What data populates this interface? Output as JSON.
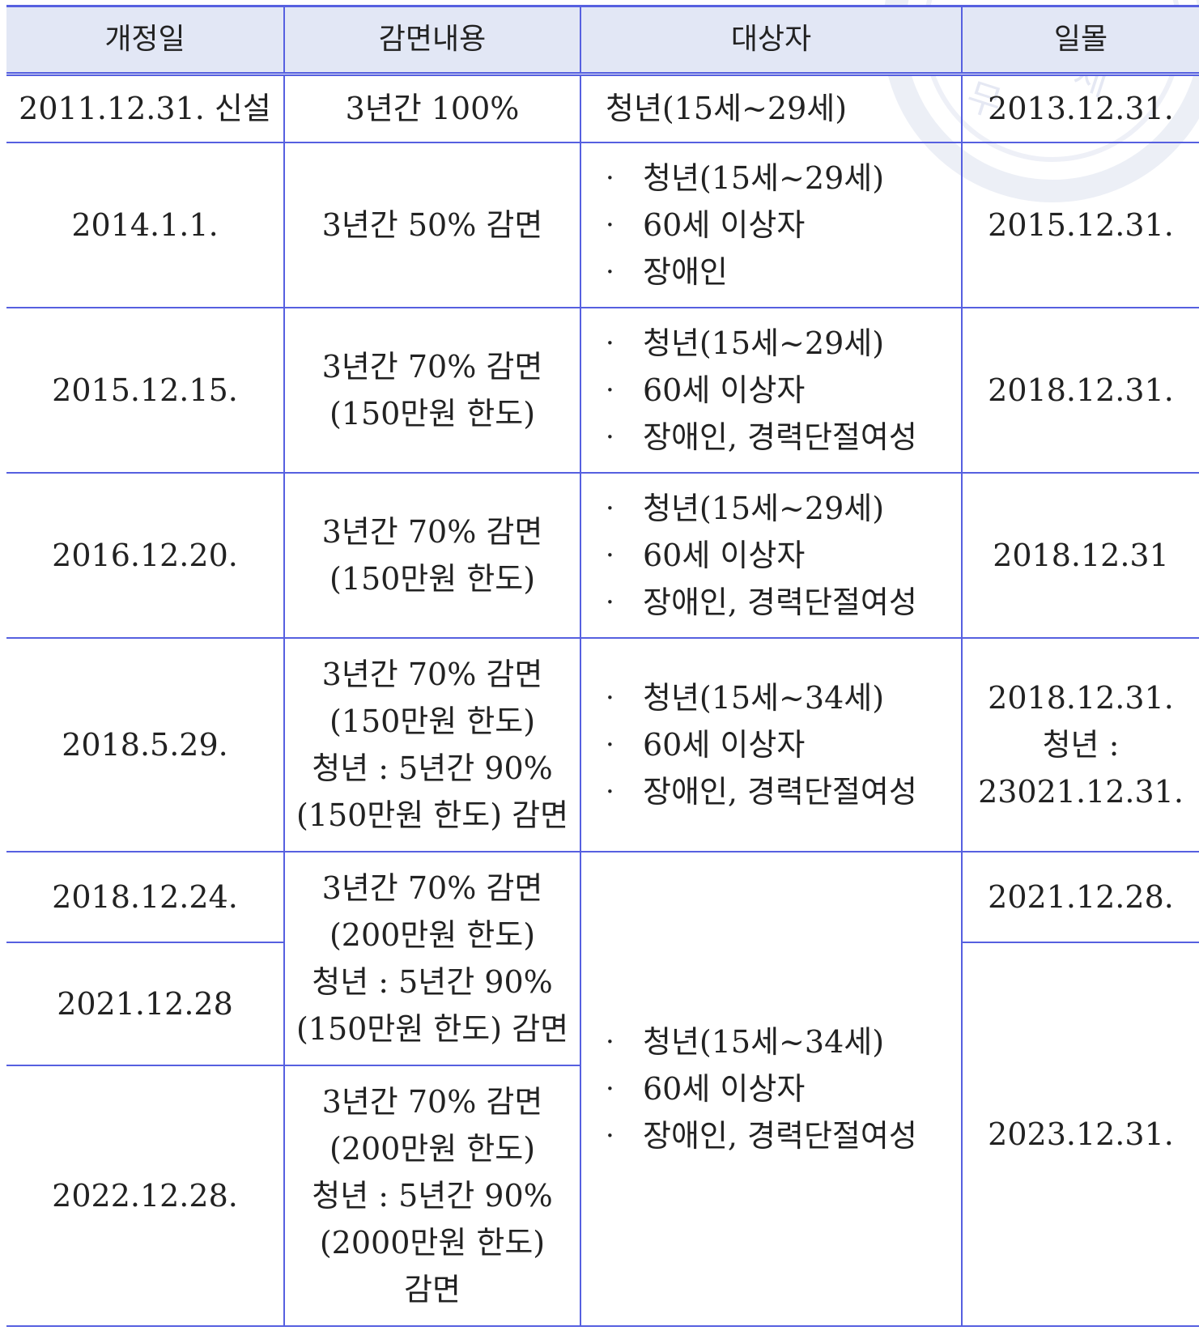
{
  "header": {
    "col1": "개정일",
    "col2": "감면내용",
    "col3": "대상자",
    "col4": "일몰"
  },
  "rows": [
    {
      "date": "2011.12.31.  신설",
      "content": [
        "3년간  100%"
      ],
      "target_plain": "청년(15세~29세)",
      "sunset": [
        "2013.12.31."
      ]
    },
    {
      "date": "2014.1.1.",
      "content": [
        "3년간  50%  감면"
      ],
      "targets": [
        "청년(15세~29세)",
        "60세  이상자",
        "장애인"
      ],
      "sunset": [
        "2015.12.31."
      ]
    },
    {
      "date": "2015.12.15.",
      "content": [
        "3년간  70%  감면",
        "(150만원  한도)"
      ],
      "targets": [
        "청년(15세~29세)",
        "60세  이상자",
        "장애인,  경력단절여성"
      ],
      "sunset": [
        "2018.12.31."
      ]
    },
    {
      "date": "2016.12.20.",
      "content": [
        "3년간  70%  감면",
        "(150만원  한도)"
      ],
      "targets": [
        "청년(15세~29세)",
        "60세  이상자",
        "장애인,  경력단절여성"
      ],
      "sunset": [
        "2018.12.31"
      ]
    },
    {
      "date": "2018.5.29.",
      "content": [
        "3년간  70%  감면",
        "(150만원  한도)",
        "청년  :  5년간  90%",
        "(150만원  한도)  감면"
      ],
      "targets": [
        "청년(15세~34세)",
        "60세  이상자",
        "장애인,  경력단절여성"
      ],
      "sunset": [
        "2018.12.31.",
        "청년  :",
        "23021.12.31."
      ]
    },
    {
      "date": "2018.12.24.",
      "content": [
        "3년간  70%  감면",
        "(200만원  한도)",
        "청년  :  5년간  90%",
        "(150만원  한도)  감면"
      ],
      "targets": [
        "청년(15세~34세)",
        "60세  이상자",
        "장애인,  경력단절여성"
      ],
      "sunset": [
        "2021.12.28."
      ]
    },
    {
      "date": "2021.12.28",
      "sunset": [
        "2023.12.31."
      ]
    },
    {
      "date": "2022.12.28.",
      "content": [
        "3년간  70%  감면",
        "(200만원  한도)",
        "청년  :  5년간  90%",
        "(2000만원  한도)",
        "감면"
      ]
    }
  ]
}
